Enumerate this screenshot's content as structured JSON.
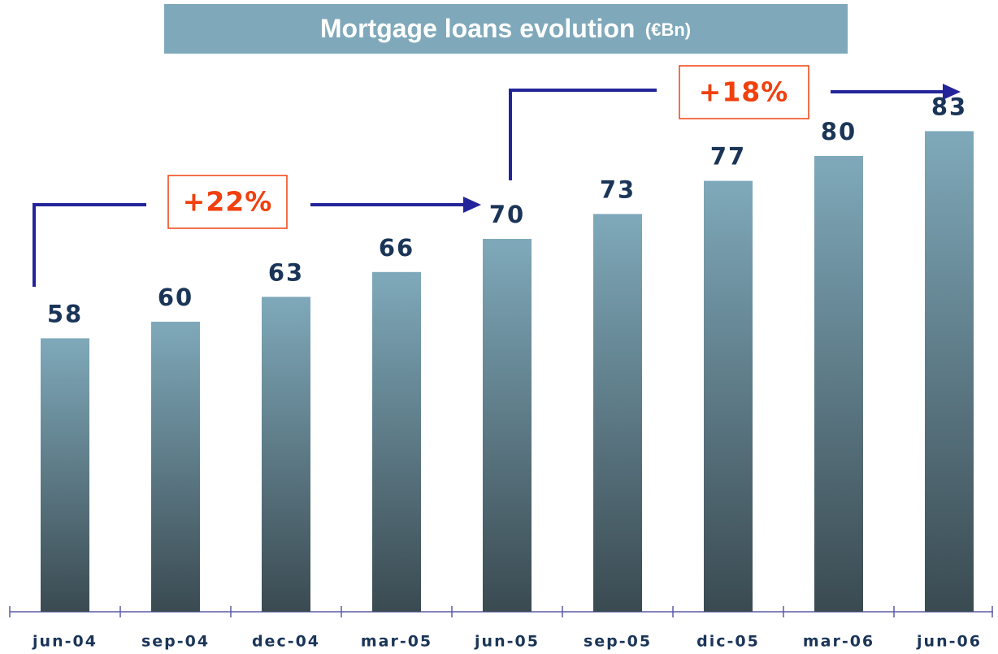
{
  "chart_data": {
    "type": "bar",
    "title": "Mortgage loans evolution",
    "unit": "(€Bn)",
    "categories": [
      "jun-04",
      "sep-04",
      "dec-04",
      "mar-05",
      "jun-05",
      "sep-05",
      "dic-05",
      "mar-06",
      "jun-06"
    ],
    "values": [
      58,
      60,
      63,
      66,
      70,
      73,
      77,
      80,
      83
    ],
    "ylim": [
      25,
      95
    ],
    "color_top": "#7fa9ba",
    "color_bottom": "#3a4a51",
    "annotations": [
      "+22%",
      "+18%"
    ]
  }
}
